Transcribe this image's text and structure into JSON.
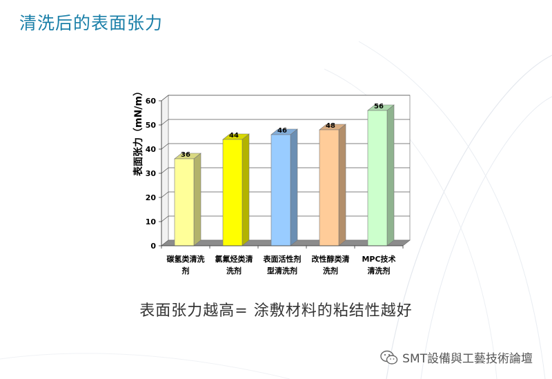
{
  "slide": {
    "title": "清洗后的表面张力",
    "caption": "表面张力越高= 涂敷材料的粘结性越好",
    "watermark": "SMT設備與工藝技術論壇",
    "watermark_icon": "wechat-icon"
  },
  "chart_data": {
    "type": "bar",
    "title": "",
    "xlabel": "",
    "ylabel": "表面张力（mN/m）",
    "ylim": [
      0,
      60
    ],
    "yticks": [
      0,
      10,
      20,
      30,
      40,
      50,
      60
    ],
    "grid": true,
    "style": "3d",
    "categories": [
      [
        "碳氢类清洗",
        "剂"
      ],
      [
        "氯氟烃类清",
        "洗剂"
      ],
      [
        "表面活性剂",
        "型清洗剂"
      ],
      [
        "改性醇类清",
        "洗剂"
      ],
      [
        "MPC技术",
        "清洗剂"
      ]
    ],
    "values": [
      36,
      44,
      46,
      48,
      56
    ],
    "colors": [
      "#ffff99",
      "#ffff00",
      "#99ccff",
      "#ffcc99",
      "#ccffcc"
    ]
  }
}
